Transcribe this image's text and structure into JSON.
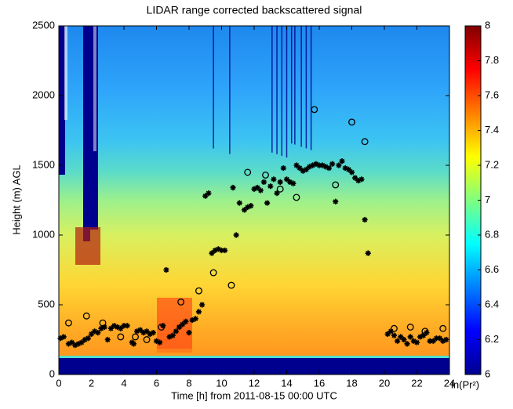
{
  "chart_data": {
    "type": "scatter",
    "title": "LIDAR range corrected backscattered signal",
    "x_label": "Time [h] from 2011-08-15 00:00 UTC",
    "y_label": "Height (m) AGL",
    "xlim": [
      0,
      24
    ],
    "xticks": [
      0,
      2,
      4,
      6,
      8,
      10,
      12,
      14,
      16,
      18,
      20,
      22,
      24
    ],
    "ylim": [
      0,
      2500
    ],
    "yticks": [
      0,
      500,
      1000,
      1500,
      2000,
      2500
    ],
    "series": [
      {
        "marker": "asterisk",
        "color": "#000000",
        "x": [
          0.1,
          0.3,
          0.6,
          0.8,
          1.0,
          1.2,
          1.4,
          1.6,
          1.8,
          2.0,
          2.2,
          2.4,
          2.6,
          2.8,
          3.0,
          3.2,
          3.4,
          3.6,
          3.8,
          4.0,
          4.2,
          4.5,
          4.6,
          4.8,
          5.0,
          5.2,
          5.4,
          5.6,
          5.8,
          6.0,
          6.2,
          6.4,
          6.6,
          6.8,
          7.0,
          7.2,
          7.4,
          7.6,
          7.8,
          8.0,
          8.2,
          8.4,
          8.6,
          8.8,
          9.0,
          9.2,
          9.4,
          9.6,
          9.8,
          10.0,
          10.2,
          10.7,
          10.9,
          11.1,
          11.4,
          11.6,
          11.8,
          12.0,
          12.2,
          12.4,
          12.6,
          12.8,
          13.0,
          13.2,
          13.4,
          13.6,
          13.8,
          14.0,
          14.2,
          14.4,
          14.6,
          14.8,
          15.0,
          15.2,
          15.4,
          15.6,
          15.8,
          16.0,
          16.2,
          16.4,
          16.6,
          16.8,
          17.0,
          17.2,
          17.4,
          17.6,
          17.8,
          18.0,
          18.2,
          18.4,
          18.6,
          18.8,
          19.0,
          20.2,
          20.4,
          20.6,
          20.8,
          21.0,
          21.2,
          21.4,
          21.6,
          21.8,
          22.0,
          22.2,
          22.4,
          22.6,
          22.8,
          23.0,
          23.2,
          23.4,
          23.6,
          23.8
        ],
        "values": [
          260,
          270,
          220,
          230,
          210,
          220,
          230,
          250,
          260,
          290,
          310,
          300,
          330,
          340,
          250,
          330,
          350,
          340,
          330,
          350,
          350,
          230,
          220,
          310,
          320,
          300,
          310,
          290,
          300,
          240,
          230,
          350,
          750,
          270,
          280,
          310,
          340,
          360,
          380,
          300,
          390,
          400,
          450,
          500,
          1280,
          1300,
          870,
          890,
          900,
          890,
          890,
          1340,
          1000,
          1230,
          1180,
          1200,
          1210,
          1330,
          1340,
          1320,
          1380,
          1230,
          1350,
          1400,
          1300,
          1380,
          1480,
          1400,
          1380,
          1370,
          1500,
          1480,
          1460,
          1470,
          1490,
          1500,
          1510,
          1500,
          1500,
          1490,
          1480,
          1510,
          1240,
          1500,
          1530,
          1480,
          1470,
          1450,
          1410,
          1390,
          1400,
          1110,
          870,
          290,
          310,
          280,
          240,
          270,
          250,
          220,
          270,
          240,
          230,
          270,
          280,
          300,
          240,
          240,
          260,
          260,
          240,
          250
        ]
      },
      {
        "marker": "circle",
        "color": "#000000",
        "x": [
          0.6,
          1.7,
          2.7,
          3.8,
          4.7,
          5.4,
          6.3,
          7.5,
          8.6,
          9.5,
          10.6,
          11.6,
          12.7,
          13.6,
          14.6,
          15.7,
          17.0,
          18.0,
          18.8,
          20.6,
          21.6,
          22.5,
          23.6
        ],
        "values": [
          370,
          420,
          370,
          270,
          270,
          250,
          340,
          520,
          600,
          730,
          640,
          1450,
          1430,
          1330,
          1270,
          1900,
          1360,
          1810,
          1670,
          330,
          340,
          310,
          330
        ]
      }
    ],
    "colorbar": {
      "label": "ln(Pr²)",
      "lim": [
        6,
        8
      ],
      "ticks": [
        6,
        6.2,
        6.4,
        6.6,
        6.8,
        7,
        7.2,
        7.4,
        7.6,
        7.8,
        8
      ]
    }
  }
}
